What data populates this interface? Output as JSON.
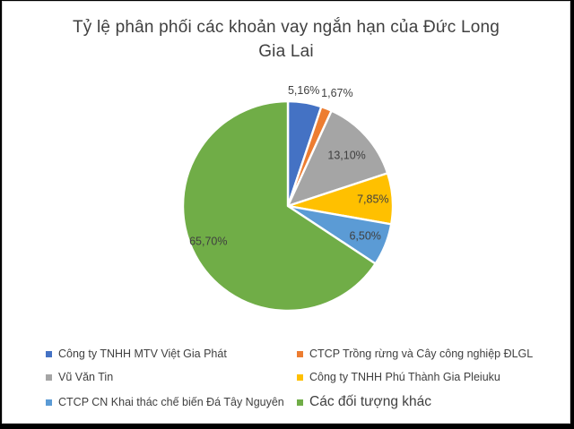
{
  "frame": {
    "outer_background": "#000000",
    "chart_background": "#ffffff",
    "chart_border_color": "#d6d6d6"
  },
  "chart_data": {
    "type": "pie",
    "title": "Tỷ lệ phân phối các khoản vay ngắn hạn của Đức Long Gia Lai",
    "title_lines": [
      "Tỷ lệ phân phối các khoản vay ngắn hạn của Đức Long",
      "Gia Lai"
    ],
    "title_color": "#404040",
    "label_color": "#404040",
    "legend_position": "bottom",
    "slice_separator_color": "#ffffff",
    "slices": [
      {
        "label": "Công ty TNHH MTV Việt Gia Phát",
        "value": 5.16,
        "display": "5,16%",
        "color": "#4472C4"
      },
      {
        "label": "CTCP Trồng rừng và Cây công nghiệp ĐLGL",
        "value": 1.67,
        "display": "1,67%",
        "color": "#ED7D31"
      },
      {
        "label": "Vũ Văn Tin",
        "value": 13.1,
        "display": "13,10%",
        "color": "#A5A5A5"
      },
      {
        "label": "Công ty TNHH Phú Thành Gia Pleiuku",
        "value": 7.85,
        "display": "7,85%",
        "color": "#FFC000"
      },
      {
        "label": "CTCP CN Khai thác chế biến Đá Tây Nguyên",
        "value": 6.5,
        "display": "6,50%",
        "color": "#5B9BD5"
      },
      {
        "label": "Các đối tượng khác",
        "value": 65.7,
        "display": "65,70%",
        "color": "#70AD47"
      }
    ]
  }
}
